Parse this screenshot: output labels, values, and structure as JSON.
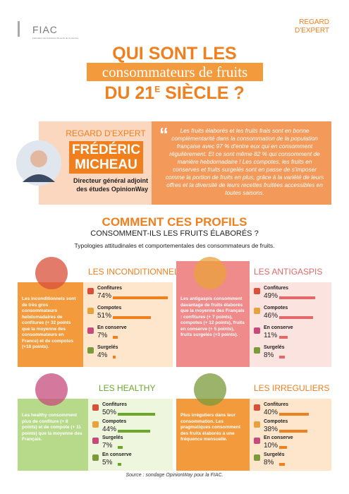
{
  "header": {
    "logo": "FIAC",
    "logo_sub": "Fédération des Industries Aliments de Conserves",
    "tag_line1": "REGARD",
    "tag_line2": "D'EXPERT"
  },
  "title": {
    "line1": "QUI SONT LES",
    "line2": "consommateurs de fruits",
    "line3_a": "DU 21",
    "line3_sup": "E",
    "line3_b": " SIÈCLE ?"
  },
  "expert": {
    "label": "REGARD D'EXPERT",
    "name": "FRÉDÉRIC MICHEAU",
    "role": "Directeur général adjoint des études OpinionWay",
    "quote": "Les fruits élaborés et les fruits frais sont en bonne complémentarité dans la consommation de la population française avec 97 % d'entre eux qui en consomment régulièrement. Et ce sont même 82 % qui consomment de manière hebdomadaire ! Les compotes, les fruits en conserves et fruits surgelés sont en passe de s'imposer comme la portion de fruits en plus, grâce à la variété de leurs offres et la diversité de leurs recettes fruitées accessibles en toutes saisons."
  },
  "section": {
    "title": "COMMENT CES PROFILS",
    "subtitle": "CONSOMMENT-ILS LES FRUITS ÉLABORÉS ?",
    "description": "Typologies attitudinales et comportementales des consommateurs de fruits."
  },
  "profiles": [
    {
      "name": "LES INCONDITIONNELS",
      "description": "Les inconditionnels sont de très gros consommateurs hebdomadaires de confitures (+ 32 points que la moyenne des consommateurs en France) et de compotes (+18 points).",
      "items": [
        {
          "label": "Confitures",
          "value": 74,
          "value_label": "74%"
        },
        {
          "label": "Compotes",
          "value": 51,
          "value_label": "51%"
        },
        {
          "label": "En conserve",
          "value": 7,
          "value_label": "7%"
        },
        {
          "label": "Surgelés",
          "value": 4,
          "value_label": "4%"
        }
      ]
    },
    {
      "name": "LES ANTIGASPIS",
      "description": "Les antigaspis consomment davantage de fruits élaborés que la moyenne des Français : confitures (+ 7 points), compotes (+ 12 points), fruits en conserve (+ 5 points), fruits surgelés (+3 points).",
      "items": [
        {
          "label": "Confitures",
          "value": 49,
          "value_label": "49%"
        },
        {
          "label": "Compotes",
          "value": 46,
          "value_label": "46%"
        },
        {
          "label": "En conserve",
          "value": 11,
          "value_label": "11%"
        },
        {
          "label": "Surgelés",
          "value": 8,
          "value_label": "8%"
        }
      ]
    },
    {
      "name": "LES HEALTHY",
      "description": "Les healthy consomment plus de confiture (+ 8 points) et de compote (+ 11 points) que la moyenne des Français.",
      "items": [
        {
          "label": "Confitures",
          "value": 50,
          "value_label": "50%"
        },
        {
          "label": "Compotes",
          "value": 44,
          "value_label": "44%"
        },
        {
          "label": "Surgelés",
          "value": 7,
          "value_label": "7%"
        },
        {
          "label": "En conserve",
          "value": 5,
          "value_label": "5%"
        }
      ]
    },
    {
      "name": "LES IRREGULIERS",
      "description": "Plus irréguliers dans leur consommation. Les pragmatiques consomment des fruits élaborés à une fréquence mensuelle.",
      "items": [
        {
          "label": "Confitures",
          "value": 40,
          "value_label": "40%"
        },
        {
          "label": "Compotes",
          "value": 38,
          "value_label": "38%"
        },
        {
          "label": "En conserve",
          "value": 10,
          "value_label": "10%"
        },
        {
          "label": "Surgelés",
          "value": 8,
          "value_label": "8%"
        }
      ]
    }
  ],
  "source": "Source : sondage OpinionWay pour la FIAC."
}
